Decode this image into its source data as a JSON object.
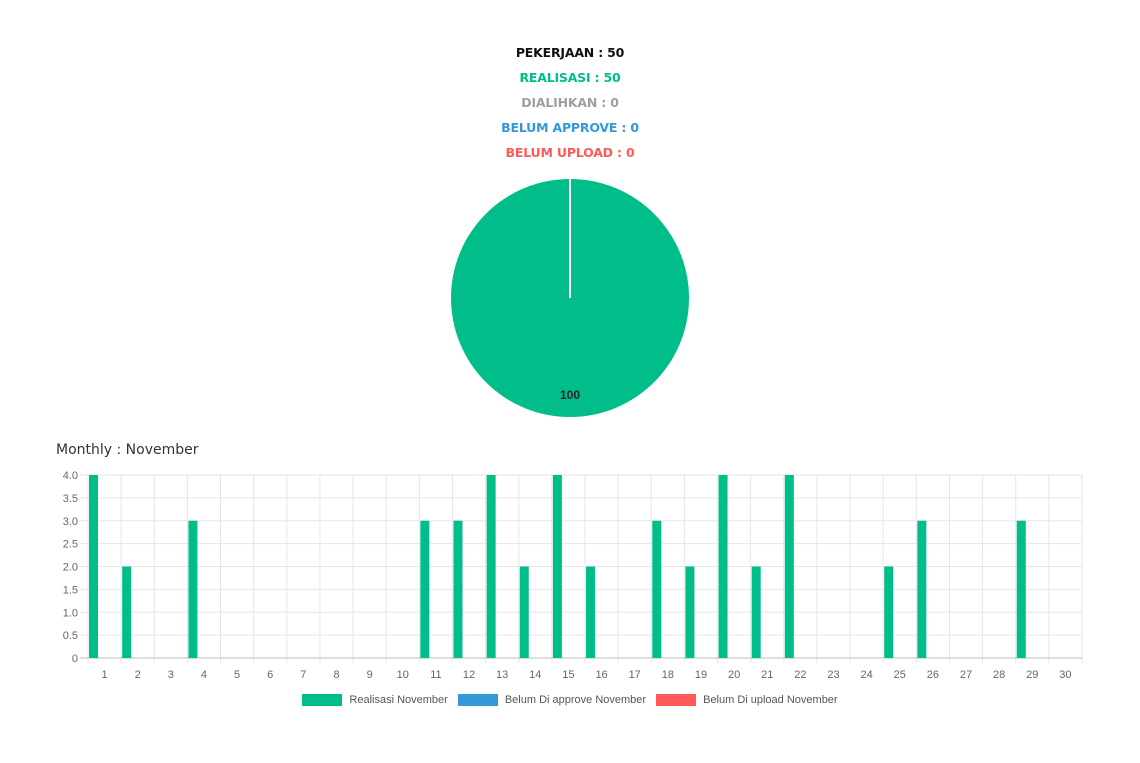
{
  "summary": {
    "pekerjaan": "PEKERJAAN : 50",
    "realisasi": "REALISASI : 50",
    "dialihkan": "DIALIHKAN : 0",
    "belum_approve": "BELUM APPROVE : 0",
    "belum_upload": "BELUM UPLOAD : 0"
  },
  "colors": {
    "black": "#111111",
    "green": "#00BD8A",
    "gray": "#A0A0A0",
    "blue": "#3498DB",
    "red": "#FF5A5A"
  },
  "monthly_title": "Monthly : November",
  "chart_data": [
    {
      "type": "pie",
      "slices": [
        {
          "name": "Realisasi",
          "value": 100,
          "color": "#00BD8A"
        }
      ],
      "data_labels": [
        "100"
      ]
    },
    {
      "type": "bar",
      "categories": [
        "1",
        "2",
        "3",
        "4",
        "5",
        "6",
        "7",
        "8",
        "9",
        "10",
        "11",
        "12",
        "13",
        "14",
        "15",
        "16",
        "17",
        "18",
        "19",
        "20",
        "21",
        "22",
        "23",
        "24",
        "25",
        "26",
        "27",
        "28",
        "29",
        "30"
      ],
      "series": [
        {
          "name": "Realisasi November",
          "color": "#00BD8A",
          "values": [
            4,
            2,
            0,
            3,
            0,
            0,
            0,
            0,
            0,
            0,
            3,
            3,
            4,
            2,
            4,
            2,
            0,
            3,
            2,
            4,
            2,
            4,
            0,
            0,
            2,
            3,
            0,
            0,
            3,
            0
          ]
        },
        {
          "name": "Belum Di approve November",
          "color": "#3498DB",
          "values": [
            0,
            0,
            0,
            0,
            0,
            0,
            0,
            0,
            0,
            0,
            0,
            0,
            0,
            0,
            0,
            0,
            0,
            0,
            0,
            0,
            0,
            0,
            0,
            0,
            0,
            0,
            0,
            0,
            0,
            0
          ]
        },
        {
          "name": "Belum Di upload November",
          "color": "#FF5A5A",
          "values": [
            0,
            0,
            0,
            0,
            0,
            0,
            0,
            0,
            0,
            0,
            0,
            0,
            0,
            0,
            0,
            0,
            0,
            0,
            0,
            0,
            0,
            0,
            0,
            0,
            0,
            0,
            0,
            0,
            0,
            0
          ]
        }
      ],
      "ylim": [
        0,
        4
      ],
      "yticks": [
        "0",
        "0.5",
        "1.0",
        "1.5",
        "2.0",
        "2.5",
        "3.0",
        "3.5",
        "4.0"
      ],
      "grid": true,
      "legend": "bottom"
    }
  ]
}
